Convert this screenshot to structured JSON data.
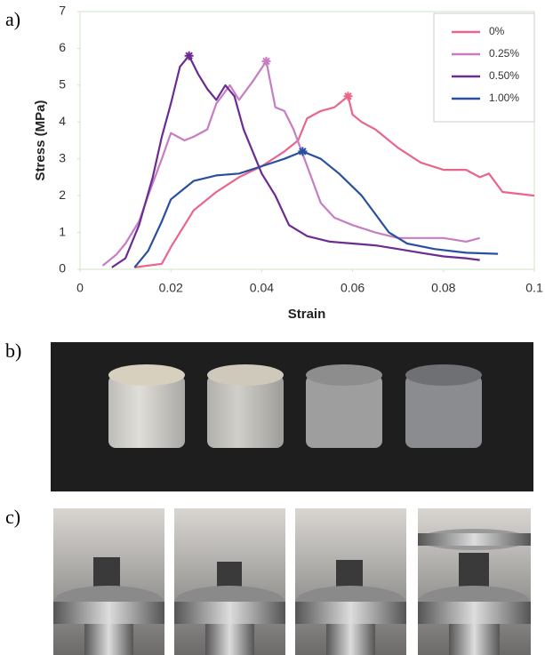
{
  "panel_labels": [
    "a)",
    "b)",
    "c)"
  ],
  "chart_data": {
    "type": "line",
    "xlabel": "Strain",
    "ylabel": "Stress (MPa)",
    "xlim": [
      0,
      0.1
    ],
    "xticks": [
      0,
      0.02,
      0.04,
      0.06,
      0.08,
      0.1
    ],
    "ylim": [
      0,
      7
    ],
    "yticks": [
      0,
      1,
      2,
      3,
      4,
      5,
      6,
      7
    ],
    "grid": false,
    "legend": "upper right",
    "peak_markers": true,
    "series": [
      {
        "name": "0%",
        "color": "#e9668a",
        "x": [
          0.012,
          0.018,
          0.02,
          0.022,
          0.025,
          0.03,
          0.035,
          0.04,
          0.045,
          0.048,
          0.05,
          0.053,
          0.056,
          0.059,
          0.06,
          0.062,
          0.065,
          0.07,
          0.075,
          0.08,
          0.085,
          0.088,
          0.09,
          0.093,
          0.1
        ],
        "values": [
          0.05,
          0.15,
          0.6,
          1.0,
          1.6,
          2.1,
          2.5,
          2.8,
          3.2,
          3.5,
          4.1,
          4.3,
          4.4,
          4.7,
          4.2,
          4.0,
          3.8,
          3.3,
          2.9,
          2.7,
          2.7,
          2.5,
          2.6,
          2.1,
          2.0
        ]
      },
      {
        "name": "0.25%",
        "color": "#c77dc2",
        "x": [
          0.005,
          0.008,
          0.01,
          0.013,
          0.015,
          0.018,
          0.02,
          0.023,
          0.025,
          0.028,
          0.03,
          0.033,
          0.035,
          0.038,
          0.041,
          0.043,
          0.045,
          0.047,
          0.05,
          0.053,
          0.056,
          0.06,
          0.065,
          0.07,
          0.08,
          0.085,
          0.088
        ],
        "values": [
          0.1,
          0.4,
          0.7,
          1.3,
          2.0,
          3.0,
          3.7,
          3.5,
          3.6,
          3.8,
          4.5,
          5.0,
          4.6,
          5.1,
          5.65,
          4.4,
          4.3,
          3.8,
          2.8,
          1.8,
          1.4,
          1.2,
          1.0,
          0.85,
          0.85,
          0.75,
          0.85
        ]
      },
      {
        "name": "0.50%",
        "color": "#6b2c92",
        "x": [
          0.007,
          0.01,
          0.013,
          0.016,
          0.018,
          0.02,
          0.022,
          0.024,
          0.026,
          0.028,
          0.03,
          0.032,
          0.034,
          0.036,
          0.04,
          0.043,
          0.046,
          0.05,
          0.055,
          0.06,
          0.065,
          0.07,
          0.075,
          0.08,
          0.085,
          0.088
        ],
        "values": [
          0.05,
          0.3,
          1.2,
          2.5,
          3.6,
          4.5,
          5.5,
          5.8,
          5.3,
          4.9,
          4.6,
          5.0,
          4.7,
          3.8,
          2.6,
          2.0,
          1.2,
          0.9,
          0.75,
          0.7,
          0.65,
          0.55,
          0.45,
          0.35,
          0.3,
          0.25
        ]
      },
      {
        "name": "1.00%",
        "color": "#2b4fa0",
        "x": [
          0.012,
          0.015,
          0.018,
          0.02,
          0.023,
          0.025,
          0.03,
          0.035,
          0.04,
          0.045,
          0.049,
          0.053,
          0.057,
          0.062,
          0.065,
          0.068,
          0.072,
          0.078,
          0.085,
          0.092
        ],
        "values": [
          0.05,
          0.5,
          1.3,
          1.9,
          2.2,
          2.4,
          2.55,
          2.6,
          2.8,
          3.0,
          3.2,
          3.0,
          2.6,
          2.0,
          1.5,
          1.0,
          0.7,
          0.55,
          0.45,
          0.42
        ]
      }
    ]
  }
}
